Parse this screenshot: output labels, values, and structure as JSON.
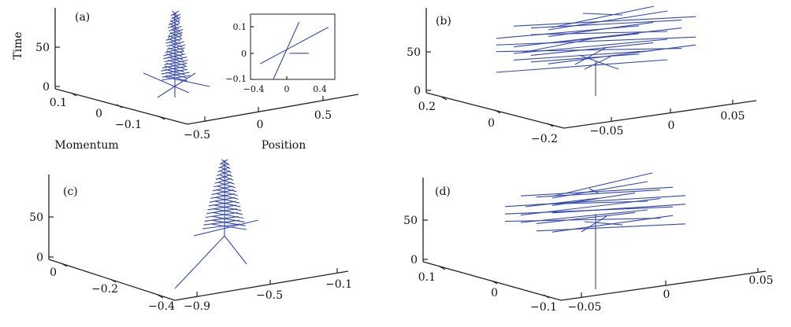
{
  "chart_data": [
    {
      "panel": "(a)",
      "type": "line",
      "axis_labels": {
        "z": "Time",
        "y": "Momentum",
        "x": "Position"
      },
      "z_ticks": [
        "0",
        "50"
      ],
      "y_ticks": [
        "0.1",
        "0",
        "−0.1"
      ],
      "x_ticks": [
        "−0.5",
        "0",
        "0.5"
      ],
      "inset": {
        "x_ticks": [
          "−0.4",
          "0",
          "0.4"
        ],
        "y_ticks": [
          "0.1",
          "0",
          "−0.1"
        ],
        "lines": [
          {
            "x": [
              -0.4,
              0.05
            ],
            "y": [
              -0.04,
              0.02
            ]
          },
          {
            "x": [
              -0.2,
              0.2
            ],
            "y": [
              -0.1,
              0.12
            ]
          },
          {
            "x": [
              0.05,
              0.65
            ],
            "y": [
              0.02,
              0.1
            ]
          },
          {
            "x": [
              0.05,
              0.35
            ],
            "y": [
              0.0,
              0.0
            ]
          }
        ]
      }
    },
    {
      "panel": "(b)",
      "type": "line",
      "z_ticks": [
        "0",
        "50"
      ],
      "y_ticks": [
        "0.2",
        "0",
        "−0.2"
      ],
      "x_ticks": [
        "−0.05",
        "0",
        "0.05"
      ]
    },
    {
      "panel": "(c)",
      "type": "line",
      "z_ticks": [
        "0",
        "50"
      ],
      "y_ticks": [
        "0",
        "−0.2",
        "−0.4"
      ],
      "x_ticks": [
        "−0.9",
        "−0.5",
        "−0.1"
      ]
    },
    {
      "panel": "(d)",
      "type": "line",
      "z_ticks": [
        "0",
        "50"
      ],
      "y_ticks": [
        "0.1",
        "0",
        "−0.1"
      ],
      "x_ticks": [
        "−0.05",
        "0",
        "0.05"
      ]
    }
  ]
}
